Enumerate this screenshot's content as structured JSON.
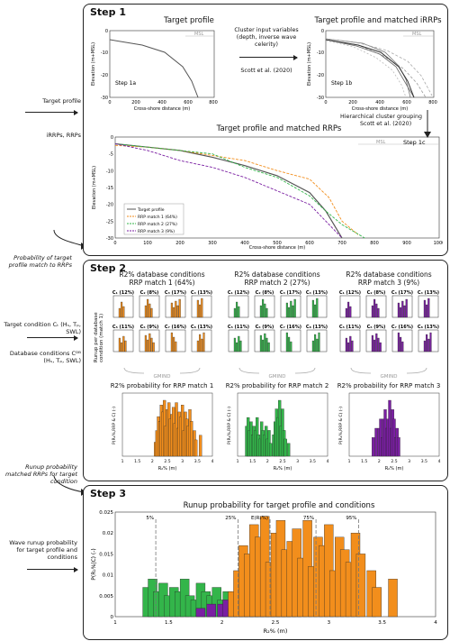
{
  "left": {
    "target_profile": "Target profile",
    "irrps_rrps": "iRRPs, RRPs",
    "prob_match": "Probability of target profile match to RRPs",
    "target_condition": "Target condition Cₜ (Hₛ, Tₚ, SWL)",
    "db_conditions": "Database conditions Cᴰᴮ (Hₛ, Tₚ, SWL)",
    "runup_prob_matched": "Runup probability matched RRPs for target condition",
    "wave_runup_prob": "Wave runup probability for target profile and conditions"
  },
  "step1": {
    "title": "Step 1",
    "target_profile_title": "Target profile",
    "matched_irrps_title": "Target profile and matched iRRPs",
    "cluster_text": "Cluster input variables (depth, inverse wave celerity)",
    "cluster_ref": "Scott et al. (2020)",
    "hier_text": "Hierarchical cluster grouping",
    "hier_ref": "Scott et al. (2020)",
    "matched_rrps_title": "Target profile and matched RRPs",
    "step1a": "Step 1a",
    "step1b": "Step 1b",
    "step1c": "Step 1c",
    "msl": "MSL",
    "xlabel": "Cross-shore distance (m)",
    "ylabel": "Elevation (m+MSL)",
    "small_xticks": [
      "0",
      "200",
      "400",
      "600",
      "800"
    ],
    "small_yticks": [
      "0",
      "-10",
      "-20",
      "-30"
    ],
    "big_xticks": [
      "0",
      "100",
      "200",
      "300",
      "400",
      "500",
      "600",
      "700",
      "800",
      "900",
      "1000"
    ],
    "big_yticks": [
      "0",
      "-5",
      "-10",
      "-15",
      "-20",
      "-25",
      "-30"
    ],
    "legend": [
      "Target profile",
      "RRP match 1 (64%)",
      "RRP match 2 (27%)",
      "RRP match 3 (9%)"
    ]
  },
  "step2": {
    "title": "Step 2",
    "db_cond": [
      "R2% database conditions",
      "R2% database conditions",
      "R2% database conditions"
    ],
    "rrp_match": [
      "RRP match 1 (64%)",
      "RRP match 2 (27%)",
      "RRP match 3 (9%)"
    ],
    "row1": [
      "C₁ (12%)",
      "C₂ (8%)",
      "C₃ (17%)",
      "C₄ (13%)"
    ],
    "row2": [
      "C₅ (11%)",
      "C₆ (9%)",
      "C₇ (16%)",
      "C₈ (13%)"
    ],
    "gmind": "GMIND",
    "runup_per_db": "Runup per database condition (match 1)",
    "mini_ylabel": "P(R₂%,RRP & Cᵢ)",
    "mini_xlabel": "R₂%",
    "prob_titles": [
      "R2% probability for RRP match 1",
      "R2% probability for RRP match 2",
      "R2% probability for RRP match 3"
    ],
    "prob_ylabel": "P(R₂%,RRP & C) (-)",
    "prob_xlabel": "R₂% (m)",
    "prob_xticks": [
      "1",
      "1.5",
      "2",
      "2.5",
      "3",
      "3.5",
      "4"
    ]
  },
  "step3": {
    "title": "Step 3",
    "chart_title": "Runup probability for target profile and conditions",
    "ylabel": "P(R₂%|C) (-)",
    "xlabel": "R₂% (m)",
    "xticks": [
      "1",
      "1.5",
      "2",
      "2.5",
      "3",
      "3.5",
      "4"
    ],
    "yticks": [
      "0",
      "0.005",
      "0.01",
      "0.015",
      "0.02",
      "0.025"
    ],
    "percentiles": [
      "5%",
      "25%",
      "E(R₂%)",
      "75%",
      "95%"
    ]
  },
  "colors": {
    "match1": "#f28e1c",
    "match2": "#33b54a",
    "match3": "#7a1fa2",
    "target": "#555555"
  },
  "chart_data": [
    {
      "type": "line",
      "title": "Target profile and matched RRPs",
      "xlabel": "Cross-shore distance (m)",
      "ylabel": "Elevation (m+MSL)",
      "xlim": [
        0,
        1000
      ],
      "ylim": [
        -30,
        0
      ],
      "series": [
        {
          "name": "Target profile",
          "x": [
            0,
            100,
            200,
            300,
            400,
            500,
            600,
            650,
            700
          ],
          "y": [
            -2,
            -3,
            -4,
            -6,
            -8.5,
            -11.5,
            -16.5,
            -22,
            -30
          ]
        },
        {
          "name": "RRP match 1 (64%)",
          "x": [
            0,
            100,
            200,
            300,
            400,
            500,
            600,
            660,
            700,
            750
          ],
          "y": [
            -2.5,
            -3,
            -4,
            -5.5,
            -7,
            -10,
            -12.5,
            -18,
            -25,
            -29
          ]
        },
        {
          "name": "RRP match 2 (27%)",
          "x": [
            0,
            100,
            200,
            300,
            400,
            500,
            600,
            650,
            700,
            770
          ],
          "y": [
            -2,
            -3,
            -4,
            -5,
            -9,
            -12,
            -17.5,
            -22,
            -26,
            -30
          ]
        },
        {
          "name": "RRP match 3 (9%)",
          "x": [
            0,
            100,
            200,
            300,
            400,
            500,
            600,
            650,
            700
          ],
          "y": [
            -2,
            -4,
            -7,
            -9,
            -12,
            -16,
            -20,
            -25,
            -30
          ]
        }
      ]
    },
    {
      "type": "bar",
      "title": "Runup probability for target profile and conditions",
      "xlabel": "R₂% (m)",
      "ylabel": "P(R₂%|C) (-)",
      "xlim": [
        1,
        4
      ],
      "ylim": [
        0,
        0.025
      ],
      "series": [
        {
          "name": "match 2",
          "x": [
            1.3,
            1.35,
            1.4,
            1.45,
            1.5,
            1.55,
            1.6,
            1.65,
            1.7,
            1.75,
            1.8,
            1.85,
            1.9,
            1.95,
            2.0,
            2.05,
            2.1,
            2.2,
            2.25,
            2.3,
            2.35,
            2.4,
            2.45,
            2.5,
            2.55,
            2.6,
            2.7
          ],
          "y": [
            0.007,
            0.009,
            0.006,
            0.008,
            0.005,
            0.007,
            0.006,
            0.009,
            0.005,
            0.004,
            0.008,
            0.006,
            0.005,
            0.007,
            0.004,
            0.006,
            0.003,
            0.005,
            0.008,
            0.011,
            0.009,
            0.013,
            0.007,
            0.011,
            0.006,
            0.004,
            0.003
          ]
        },
        {
          "name": "match 3",
          "x": [
            1.8,
            1.9,
            2.0,
            2.05,
            2.1,
            2.15,
            2.2,
            2.25,
            2.3,
            2.35,
            2.4,
            2.45,
            2.5,
            2.55,
            2.6,
            2.65
          ],
          "y": [
            0.002,
            0.003,
            0.003,
            0.004,
            0.002,
            0.004,
            0.005,
            0.003,
            0.004,
            0.006,
            0.003,
            0.005,
            0.004,
            0.002,
            0.003,
            0.002
          ]
        },
        {
          "name": "match 1",
          "x": [
            2.1,
            2.15,
            2.2,
            2.25,
            2.3,
            2.35,
            2.4,
            2.45,
            2.5,
            2.55,
            2.6,
            2.65,
            2.7,
            2.75,
            2.8,
            2.85,
            2.9,
            2.95,
            3.0,
            3.05,
            3.1,
            3.15,
            3.2,
            3.25,
            3.3,
            3.4,
            3.45,
            3.6
          ],
          "y": [
            0.006,
            0.011,
            0.017,
            0.015,
            0.022,
            0.019,
            0.024,
            0.013,
            0.02,
            0.023,
            0.016,
            0.018,
            0.021,
            0.014,
            0.023,
            0.012,
            0.019,
            0.017,
            0.022,
            0.011,
            0.019,
            0.016,
            0.013,
            0.02,
            0.015,
            0.011,
            0.007,
            0.009
          ]
        }
      ]
    }
  ]
}
